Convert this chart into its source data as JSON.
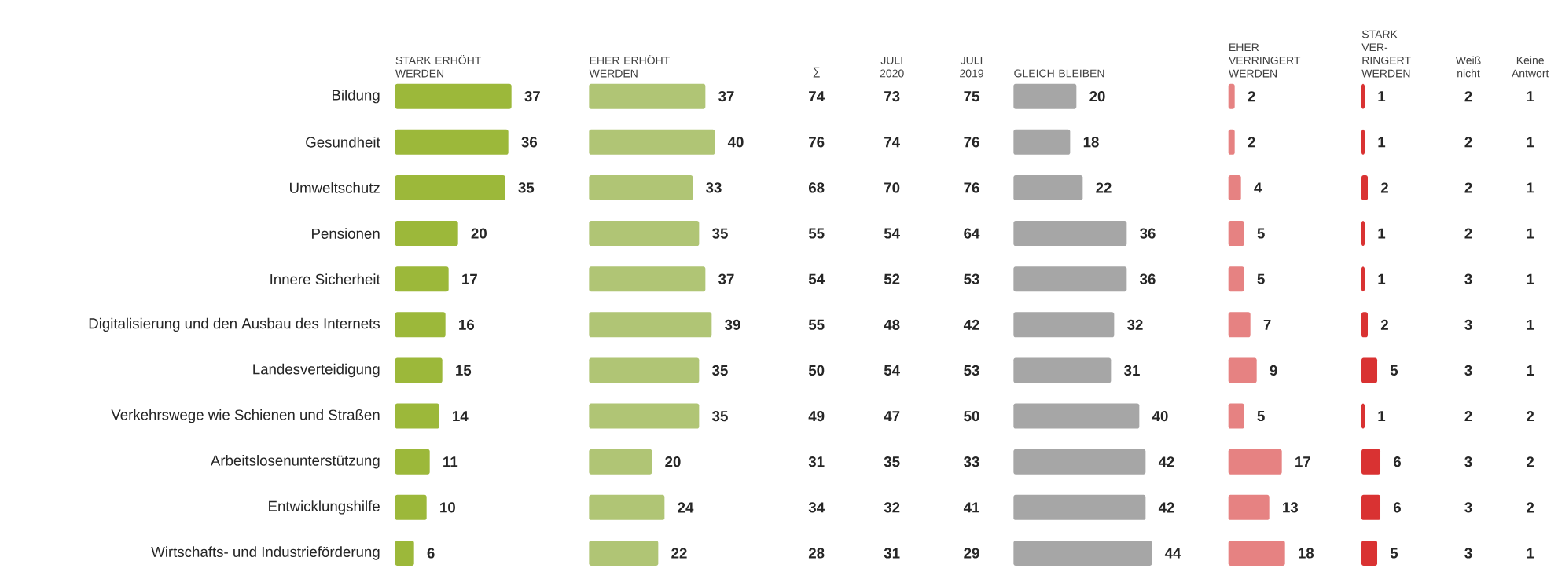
{
  "chart_data": [
    {
      "type": "bar",
      "orientation": "horizontal",
      "title": "STARK ERHÖHT WERDEN",
      "color": "#9cb83a",
      "data_labels": true,
      "tick_labels": "y",
      "categories": [
        "Bildung",
        "Gesundheit",
        "Umweltschutz",
        "Pensionen",
        "Innere Sicherheit",
        "Digitalisierung und den Ausbau des Internets",
        "Landesverteidigung",
        "Verkehrswege wie Schienen und Straßen",
        "Arbeitslosenunterstützung",
        "Entwicklungshilfe",
        "Wirtschafts- und Industrieförderung"
      ],
      "values": [
        37,
        36,
        35,
        20,
        17,
        16,
        15,
        14,
        11,
        10,
        6
      ]
    },
    {
      "type": "bar",
      "orientation": "horizontal",
      "title": "EHER ERHÖHT WERDEN",
      "color": "#b0c575",
      "data_labels": true,
      "categories": [
        null,
        null,
        null,
        null,
        null,
        null,
        null,
        null,
        null,
        null,
        null
      ],
      "values": [
        37,
        40,
        33,
        35,
        37,
        39,
        35,
        35,
        20,
        24,
        22
      ]
    },
    {
      "type": "other",
      "title": "∑",
      "data_labels": true,
      "categories": [
        null,
        null,
        null,
        null,
        null,
        null,
        null,
        null,
        null,
        null,
        null
      ],
      "values": [
        74,
        76,
        68,
        55,
        54,
        55,
        50,
        49,
        31,
        34,
        28
      ]
    },
    {
      "type": "other",
      "title": "JULI 2020",
      "data_labels": true,
      "categories": [
        null,
        null,
        null,
        null,
        null,
        null,
        null,
        null,
        null,
        null,
        null
      ],
      "values": [
        73,
        74,
        70,
        54,
        52,
        48,
        54,
        47,
        35,
        32,
        31
      ]
    },
    {
      "type": "other",
      "title": "JULI 2019",
      "data_labels": true,
      "categories": [
        null,
        null,
        null,
        null,
        null,
        null,
        null,
        null,
        null,
        null,
        null
      ],
      "values": [
        75,
        76,
        76,
        64,
        53,
        42,
        53,
        50,
        33,
        41,
        29
      ]
    },
    {
      "type": "bar",
      "orientation": "horizontal",
      "title": "GLEICH BLEIBEN",
      "color": "#a6a6a6",
      "data_labels": true,
      "categories": [
        null,
        null,
        null,
        null,
        null,
        null,
        null,
        null,
        null,
        null,
        null
      ],
      "values": [
        20,
        18,
        22,
        36,
        36,
        32,
        31,
        40,
        42,
        42,
        44
      ]
    },
    {
      "type": "bar",
      "orientation": "horizontal",
      "title": "EHER VERRINGERT WERDEN",
      "color": "#e68282",
      "data_labels": true,
      "categories": [
        null,
        null,
        null,
        null,
        null,
        null,
        null,
        null,
        null,
        null,
        null
      ],
      "values": [
        2,
        2,
        4,
        5,
        5,
        7,
        9,
        5,
        17,
        13,
        18
      ]
    },
    {
      "type": "bar",
      "orientation": "horizontal",
      "title": "STARK VER-RINGERT WERDEN",
      "color": "#d93232",
      "data_labels": true,
      "categories": [
        null,
        null,
        null,
        null,
        null,
        null,
        null,
        null,
        null,
        null,
        null
      ],
      "values": [
        1,
        1,
        2,
        1,
        1,
        2,
        5,
        1,
        6,
        6,
        5
      ]
    },
    {
      "type": "other",
      "title": "Weiß nicht",
      "data_labels": true,
      "categories": [
        null,
        null,
        null,
        null,
        null,
        null,
        null,
        null,
        null,
        null,
        null
      ],
      "values": [
        2,
        2,
        2,
        2,
        3,
        3,
        3,
        2,
        3,
        3,
        3
      ]
    },
    {
      "type": "other",
      "title": "Keine Antwort",
      "data_labels": true,
      "categories": [
        null,
        null,
        null,
        null,
        null,
        null,
        null,
        null,
        null,
        null,
        null
      ],
      "values": [
        1,
        1,
        1,
        1,
        1,
        1,
        1,
        2,
        2,
        2,
        1
      ]
    }
  ]
}
